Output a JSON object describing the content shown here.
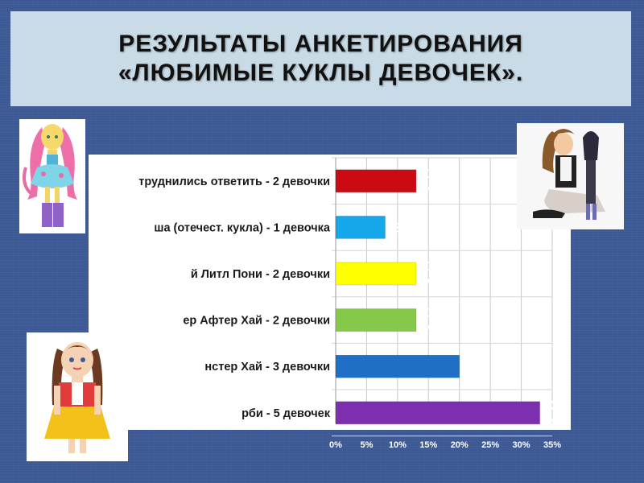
{
  "title": "РЕЗУЛЬТАТЫ АНКЕТИРОВАНИЯ «ЛЮБИМЫЕ КУКЛЫ ДЕВОЧЕК».",
  "chart_data": {
    "type": "bar",
    "orientation": "horizontal",
    "categories": [
      "труднились ответить - 2 девочки",
      "ша (отечест. кукла) - 1 девочка",
      "й Литл Пони - 2 девочки",
      "ер Афтер Хай - 2 девочки",
      "нстер Хай - 3 девочки",
      "рби - 5 девочек"
    ],
    "values": [
      13,
      8,
      13,
      13,
      20,
      33
    ],
    "value_labels": [
      [
        "13",
        "%"
      ],
      [
        "8%"
      ],
      [
        "13",
        "%"
      ],
      [
        "13",
        "%"
      ],
      [
        "20",
        "%"
      ],
      [
        "33",
        "%"
      ]
    ],
    "colors": [
      "#cc0a14",
      "#14a8ea",
      "#ffff00",
      "#86c84a",
      "#1f6fc6",
      "#7e2fb0"
    ],
    "xticks": [
      "0%",
      "5%",
      "10%",
      "15%",
      "20%",
      "25%",
      "30%",
      "35%"
    ],
    "xlim": [
      0,
      35
    ],
    "grid": true,
    "plot_background": "#ffffff"
  },
  "images": [
    {
      "name": "pony-doll",
      "icon": "doll-photo-icon"
    },
    {
      "name": "girl-with-doll",
      "icon": "girl-photo-icon"
    },
    {
      "name": "classic-doll",
      "icon": "doll-photo-icon"
    }
  ]
}
